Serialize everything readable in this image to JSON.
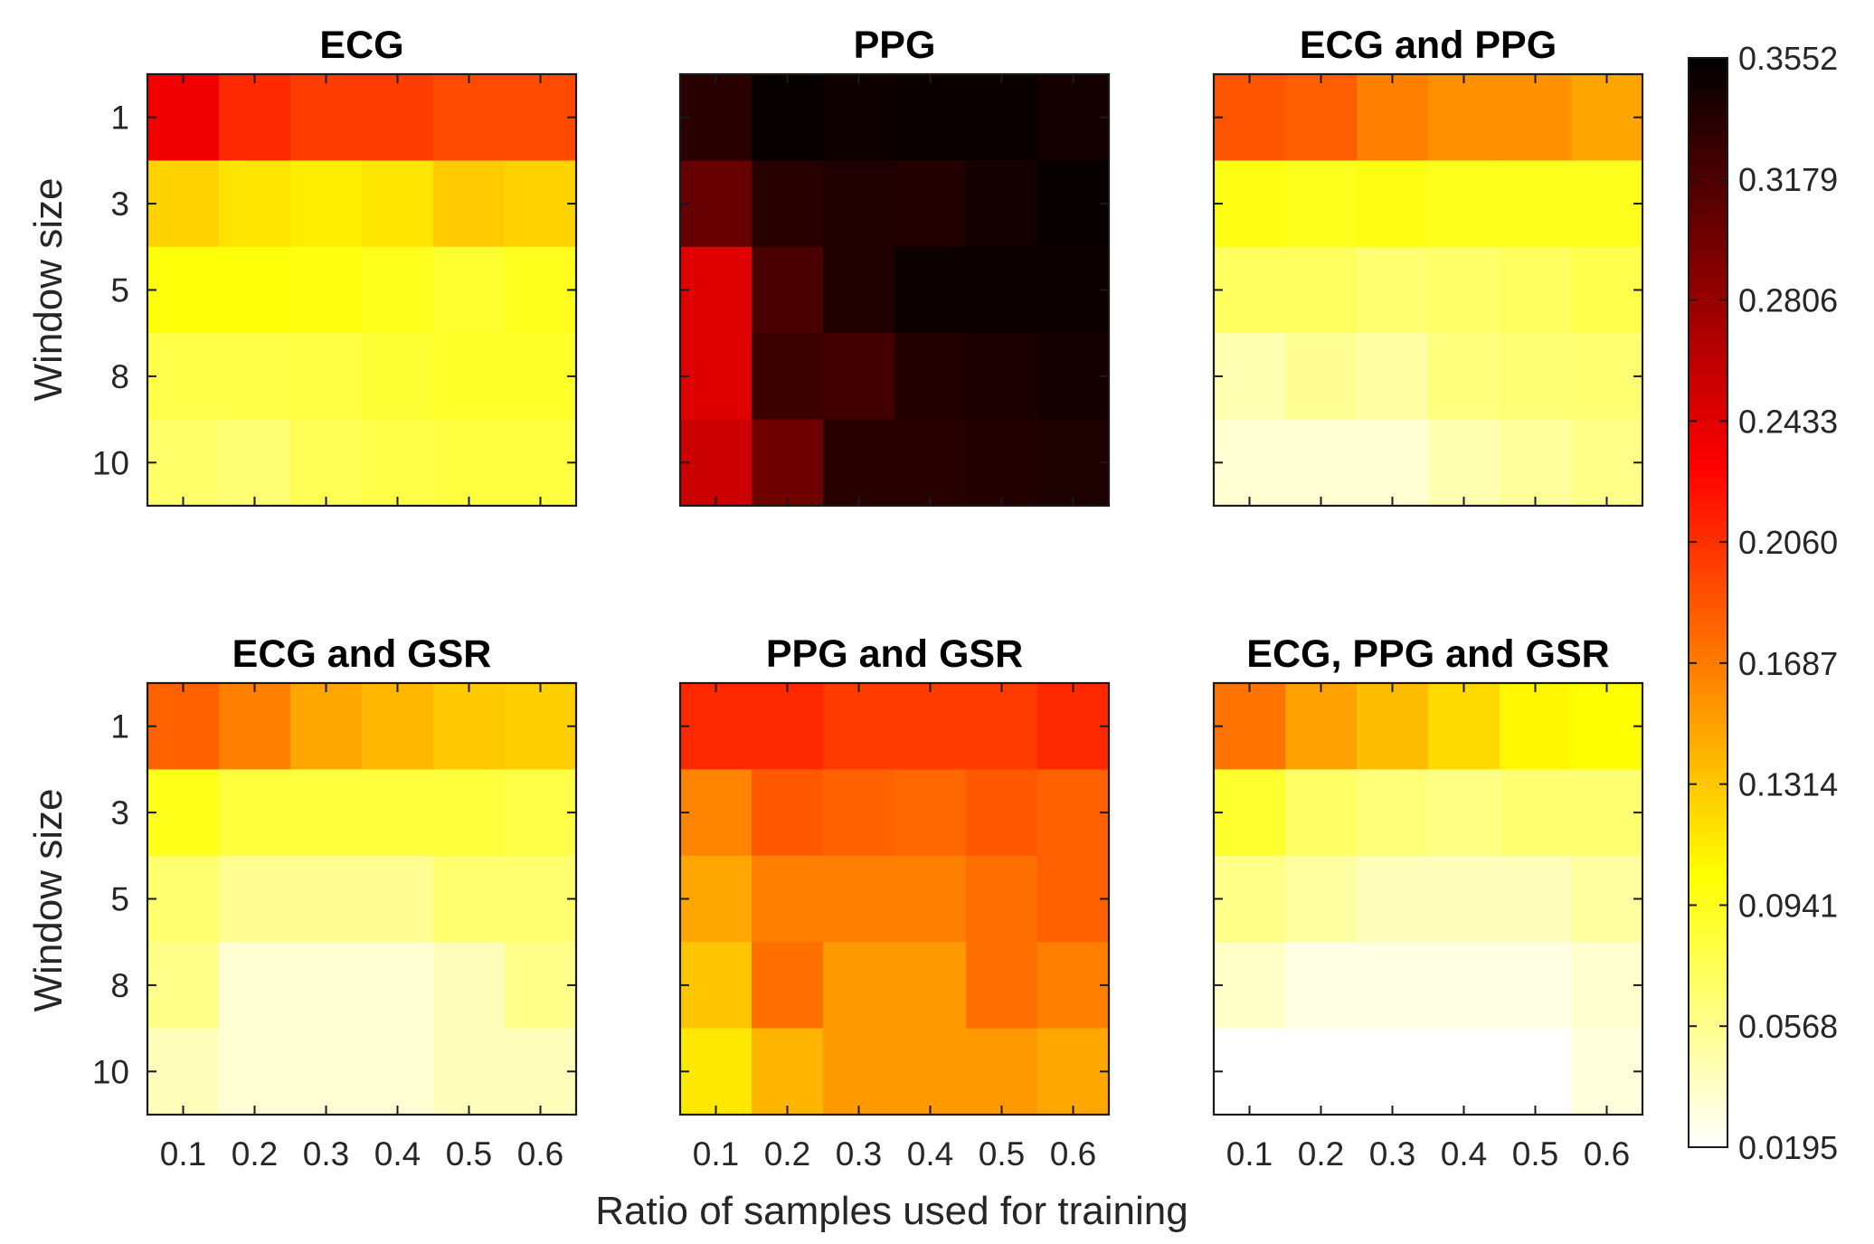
{
  "chart_data": {
    "type": "heatmap",
    "xlabel": "Ratio of samples used for training",
    "ylabel": "Window size",
    "x_ticks": [
      "0.1",
      "0.2",
      "0.3",
      "0.4",
      "0.5",
      "0.6"
    ],
    "y_ticks": [
      "1",
      "3",
      "5",
      "8",
      "10"
    ],
    "colorbar": {
      "min": 0.0195,
      "max": 0.3552,
      "colormap": "hot (reversed)",
      "tick_labels": [
        "0.0195",
        "0.0568",
        "0.0941",
        "0.1314",
        "0.1687",
        "0.2060",
        "0.2433",
        "0.2806",
        "0.3179",
        "0.3552"
      ],
      "tick_values": [
        0.0195,
        0.0568,
        0.0941,
        0.1314,
        0.1687,
        0.206,
        0.2433,
        0.2806,
        0.3179,
        0.3552
      ]
    },
    "panels": [
      {
        "title": "ECG",
        "values": [
          [
            0.236,
            0.209,
            0.199,
            0.199,
            0.193,
            0.193
          ],
          [
            0.125,
            0.117,
            0.112,
            0.116,
            0.129,
            0.125
          ],
          [
            0.1,
            0.1,
            0.098,
            0.094,
            0.087,
            0.094
          ],
          [
            0.079,
            0.079,
            0.081,
            0.086,
            0.09,
            0.09
          ],
          [
            0.069,
            0.065,
            0.075,
            0.079,
            0.082,
            0.082
          ]
        ]
      },
      {
        "title": "PPG",
        "values": [
          [
            0.335,
            0.352,
            0.348,
            0.35,
            0.35,
            0.345
          ],
          [
            0.305,
            0.335,
            0.34,
            0.338,
            0.345,
            0.352
          ],
          [
            0.245,
            0.318,
            0.34,
            0.349,
            0.349,
            0.349
          ],
          [
            0.245,
            0.325,
            0.322,
            0.338,
            0.342,
            0.345
          ],
          [
            0.255,
            0.3,
            0.336,
            0.336,
            0.338,
            0.341
          ]
        ]
      },
      {
        "title": "ECG and PPG",
        "values": [
          [
            0.188,
            0.183,
            0.166,
            0.158,
            0.158,
            0.148
          ],
          [
            0.097,
            0.094,
            0.097,
            0.094,
            0.094,
            0.094
          ],
          [
            0.072,
            0.072,
            0.066,
            0.069,
            0.072,
            0.078
          ],
          [
            0.045,
            0.055,
            0.049,
            0.062,
            0.065,
            0.066
          ],
          [
            0.034,
            0.034,
            0.034,
            0.045,
            0.052,
            0.058
          ]
        ]
      },
      {
        "title": "ECG and GSR",
        "values": [
          [
            0.182,
            0.166,
            0.147,
            0.139,
            0.13,
            0.127
          ],
          [
            0.095,
            0.083,
            0.083,
            0.083,
            0.083,
            0.08
          ],
          [
            0.067,
            0.055,
            0.055,
            0.055,
            0.067,
            0.067
          ],
          [
            0.058,
            0.034,
            0.034,
            0.034,
            0.042,
            0.058
          ],
          [
            0.042,
            0.034,
            0.034,
            0.034,
            0.042,
            0.042
          ]
        ]
      },
      {
        "title": "PPG and GSR",
        "values": [
          [
            0.209,
            0.209,
            0.2,
            0.2,
            0.2,
            0.209
          ],
          [
            0.164,
            0.186,
            0.182,
            0.178,
            0.186,
            0.182
          ],
          [
            0.147,
            0.166,
            0.166,
            0.166,
            0.174,
            0.182
          ],
          [
            0.132,
            0.174,
            0.154,
            0.154,
            0.174,
            0.166
          ],
          [
            0.115,
            0.14,
            0.154,
            0.154,
            0.154,
            0.147
          ]
        ]
      },
      {
        "title": "ECG, PPG and GSR",
        "values": [
          [
            0.172,
            0.15,
            0.136,
            0.122,
            0.108,
            0.104
          ],
          [
            0.088,
            0.07,
            0.064,
            0.06,
            0.066,
            0.066
          ],
          [
            0.058,
            0.05,
            0.042,
            0.042,
            0.042,
            0.05
          ],
          [
            0.038,
            0.028,
            0.028,
            0.028,
            0.028,
            0.035
          ],
          [
            0.0195,
            0.0195,
            0.0195,
            0.0195,
            0.0195,
            0.031
          ]
        ]
      }
    ]
  }
}
